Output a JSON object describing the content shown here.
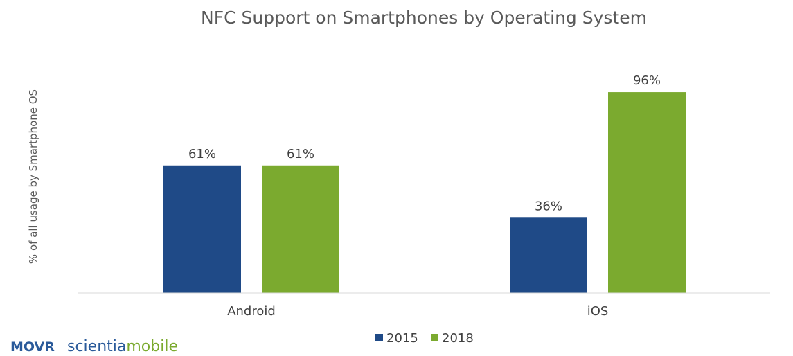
{
  "chart_data": {
    "type": "bar",
    "title": "NFC Support on Smartphones by Operating System",
    "ylabel": "% of all usage by Smartphone OS",
    "xlabel": "",
    "categories": [
      "Android",
      "iOS"
    ],
    "ylim": [
      0,
      100
    ],
    "grid": false,
    "legend_position": "bottom",
    "series": [
      {
        "name": "2015",
        "values": [
          61,
          36
        ],
        "color": "#1F4A87",
        "labels": [
          "61%",
          "36%"
        ]
      },
      {
        "name": "2018",
        "values": [
          61,
          96
        ],
        "color": "#7BAA2F",
        "labels": [
          "61%",
          "96%"
        ]
      }
    ]
  },
  "branding": {
    "movr": "MOVR",
    "movr_color": "#2A5A9A",
    "scientia": "scientia",
    "scientia_color": "#2A5A9A",
    "mobile": "mobile",
    "mobile_color": "#7BAA2F"
  }
}
